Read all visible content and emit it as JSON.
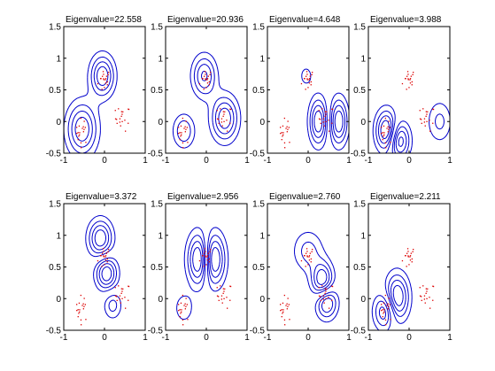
{
  "chart_data": {
    "type": "contour",
    "xlim": [
      -1,
      1
    ],
    "ylim": [
      -0.5,
      1.5
    ],
    "xticks": [
      -1,
      0,
      1
    ],
    "yticks": [
      -0.5,
      0,
      0.5,
      1,
      1.5
    ],
    "contour_color": "#0000cc",
    "point_color": "#dd0000",
    "grid": false,
    "panels": [
      {
        "title": "Eigenvalue=22.558",
        "peaks": [
          {
            "x": -0.05,
            "y": 0.72,
            "sx": 0.2,
            "sy": 0.22,
            "a": 1.0
          },
          {
            "x": -0.55,
            "y": -0.12,
            "sx": 0.25,
            "sy": 0.28,
            "a": 1.0
          }
        ]
      },
      {
        "title": "Eigenvalue=20.936",
        "peaks": [
          {
            "x": -0.05,
            "y": 0.72,
            "sx": 0.2,
            "sy": 0.22,
            "a": 0.85
          },
          {
            "x": 0.45,
            "y": 0.05,
            "sx": 0.22,
            "sy": 0.24,
            "a": 1.0
          },
          {
            "x": -0.55,
            "y": -0.15,
            "sx": 0.18,
            "sy": 0.18,
            "a": -0.6
          }
        ]
      },
      {
        "title": "Eigenvalue=4.648",
        "peaks": [
          {
            "x": 0.25,
            "y": 0.0,
            "sx": 0.15,
            "sy": 0.25,
            "a": 1.0
          },
          {
            "x": 0.75,
            "y": 0.0,
            "sx": 0.15,
            "sy": 0.25,
            "a": -1.0
          },
          {
            "x": -0.05,
            "y": 0.72,
            "sx": 0.12,
            "sy": 0.12,
            "a": 0.3
          }
        ]
      },
      {
        "title": "Eigenvalue=3.988",
        "peaks": [
          {
            "x": -0.55,
            "y": -0.15,
            "sx": 0.18,
            "sy": 0.22,
            "a": 1.0
          },
          {
            "x": -0.25,
            "y": -0.3,
            "sx": 0.18,
            "sy": 0.2,
            "a": -0.9
          },
          {
            "x": 0.75,
            "y": 0.0,
            "sx": 0.2,
            "sy": 0.22,
            "a": 0.4
          }
        ]
      },
      {
        "title": "Eigenvalue=3.372",
        "peaks": [
          {
            "x": -0.1,
            "y": 0.95,
            "sx": 0.2,
            "sy": 0.2,
            "a": 1.0
          },
          {
            "x": 0.05,
            "y": 0.4,
            "sx": 0.18,
            "sy": 0.18,
            "a": -1.0
          },
          {
            "x": 0.2,
            "y": -0.1,
            "sx": 0.15,
            "sy": 0.15,
            "a": 0.5
          }
        ]
      },
      {
        "title": "Eigenvalue=2.956",
        "peaks": [
          {
            "x": -0.15,
            "y": 0.62,
            "sx": 0.2,
            "sy": 0.28,
            "a": 1.0
          },
          {
            "x": 0.15,
            "y": 0.62,
            "sx": 0.2,
            "sy": 0.28,
            "a": -1.0
          },
          {
            "x": -0.55,
            "y": -0.15,
            "sx": 0.15,
            "sy": 0.15,
            "a": 0.3
          }
        ]
      },
      {
        "title": "Eigenvalue=2.760",
        "peaks": [
          {
            "x": 0.35,
            "y": 0.28,
            "sx": 0.18,
            "sy": 0.2,
            "a": 1.0
          },
          {
            "x": 0.45,
            "y": -0.05,
            "sx": 0.18,
            "sy": 0.18,
            "a": -0.9
          },
          {
            "x": 0.0,
            "y": 0.75,
            "sx": 0.25,
            "sy": 0.22,
            "a": 0.45
          }
        ]
      },
      {
        "title": "Eigenvalue=2.211",
        "peaks": [
          {
            "x": -0.3,
            "y": 0.02,
            "sx": 0.2,
            "sy": 0.25,
            "a": 1.0
          },
          {
            "x": -0.6,
            "y": -0.2,
            "sx": 0.18,
            "sy": 0.2,
            "a": -0.8
          }
        ]
      }
    ],
    "point_clusters": [
      {
        "cx": 0.0,
        "cy": 0.65,
        "sx": 0.08,
        "sy": 0.1,
        "n": 18
      },
      {
        "cx": -0.55,
        "cy": -0.15,
        "sx": 0.08,
        "sy": 0.1,
        "n": 18
      },
      {
        "cx": 0.45,
        "cy": 0.05,
        "sx": 0.09,
        "sy": 0.1,
        "n": 18
      }
    ],
    "layout": {
      "rows": 2,
      "cols": 4
    }
  }
}
